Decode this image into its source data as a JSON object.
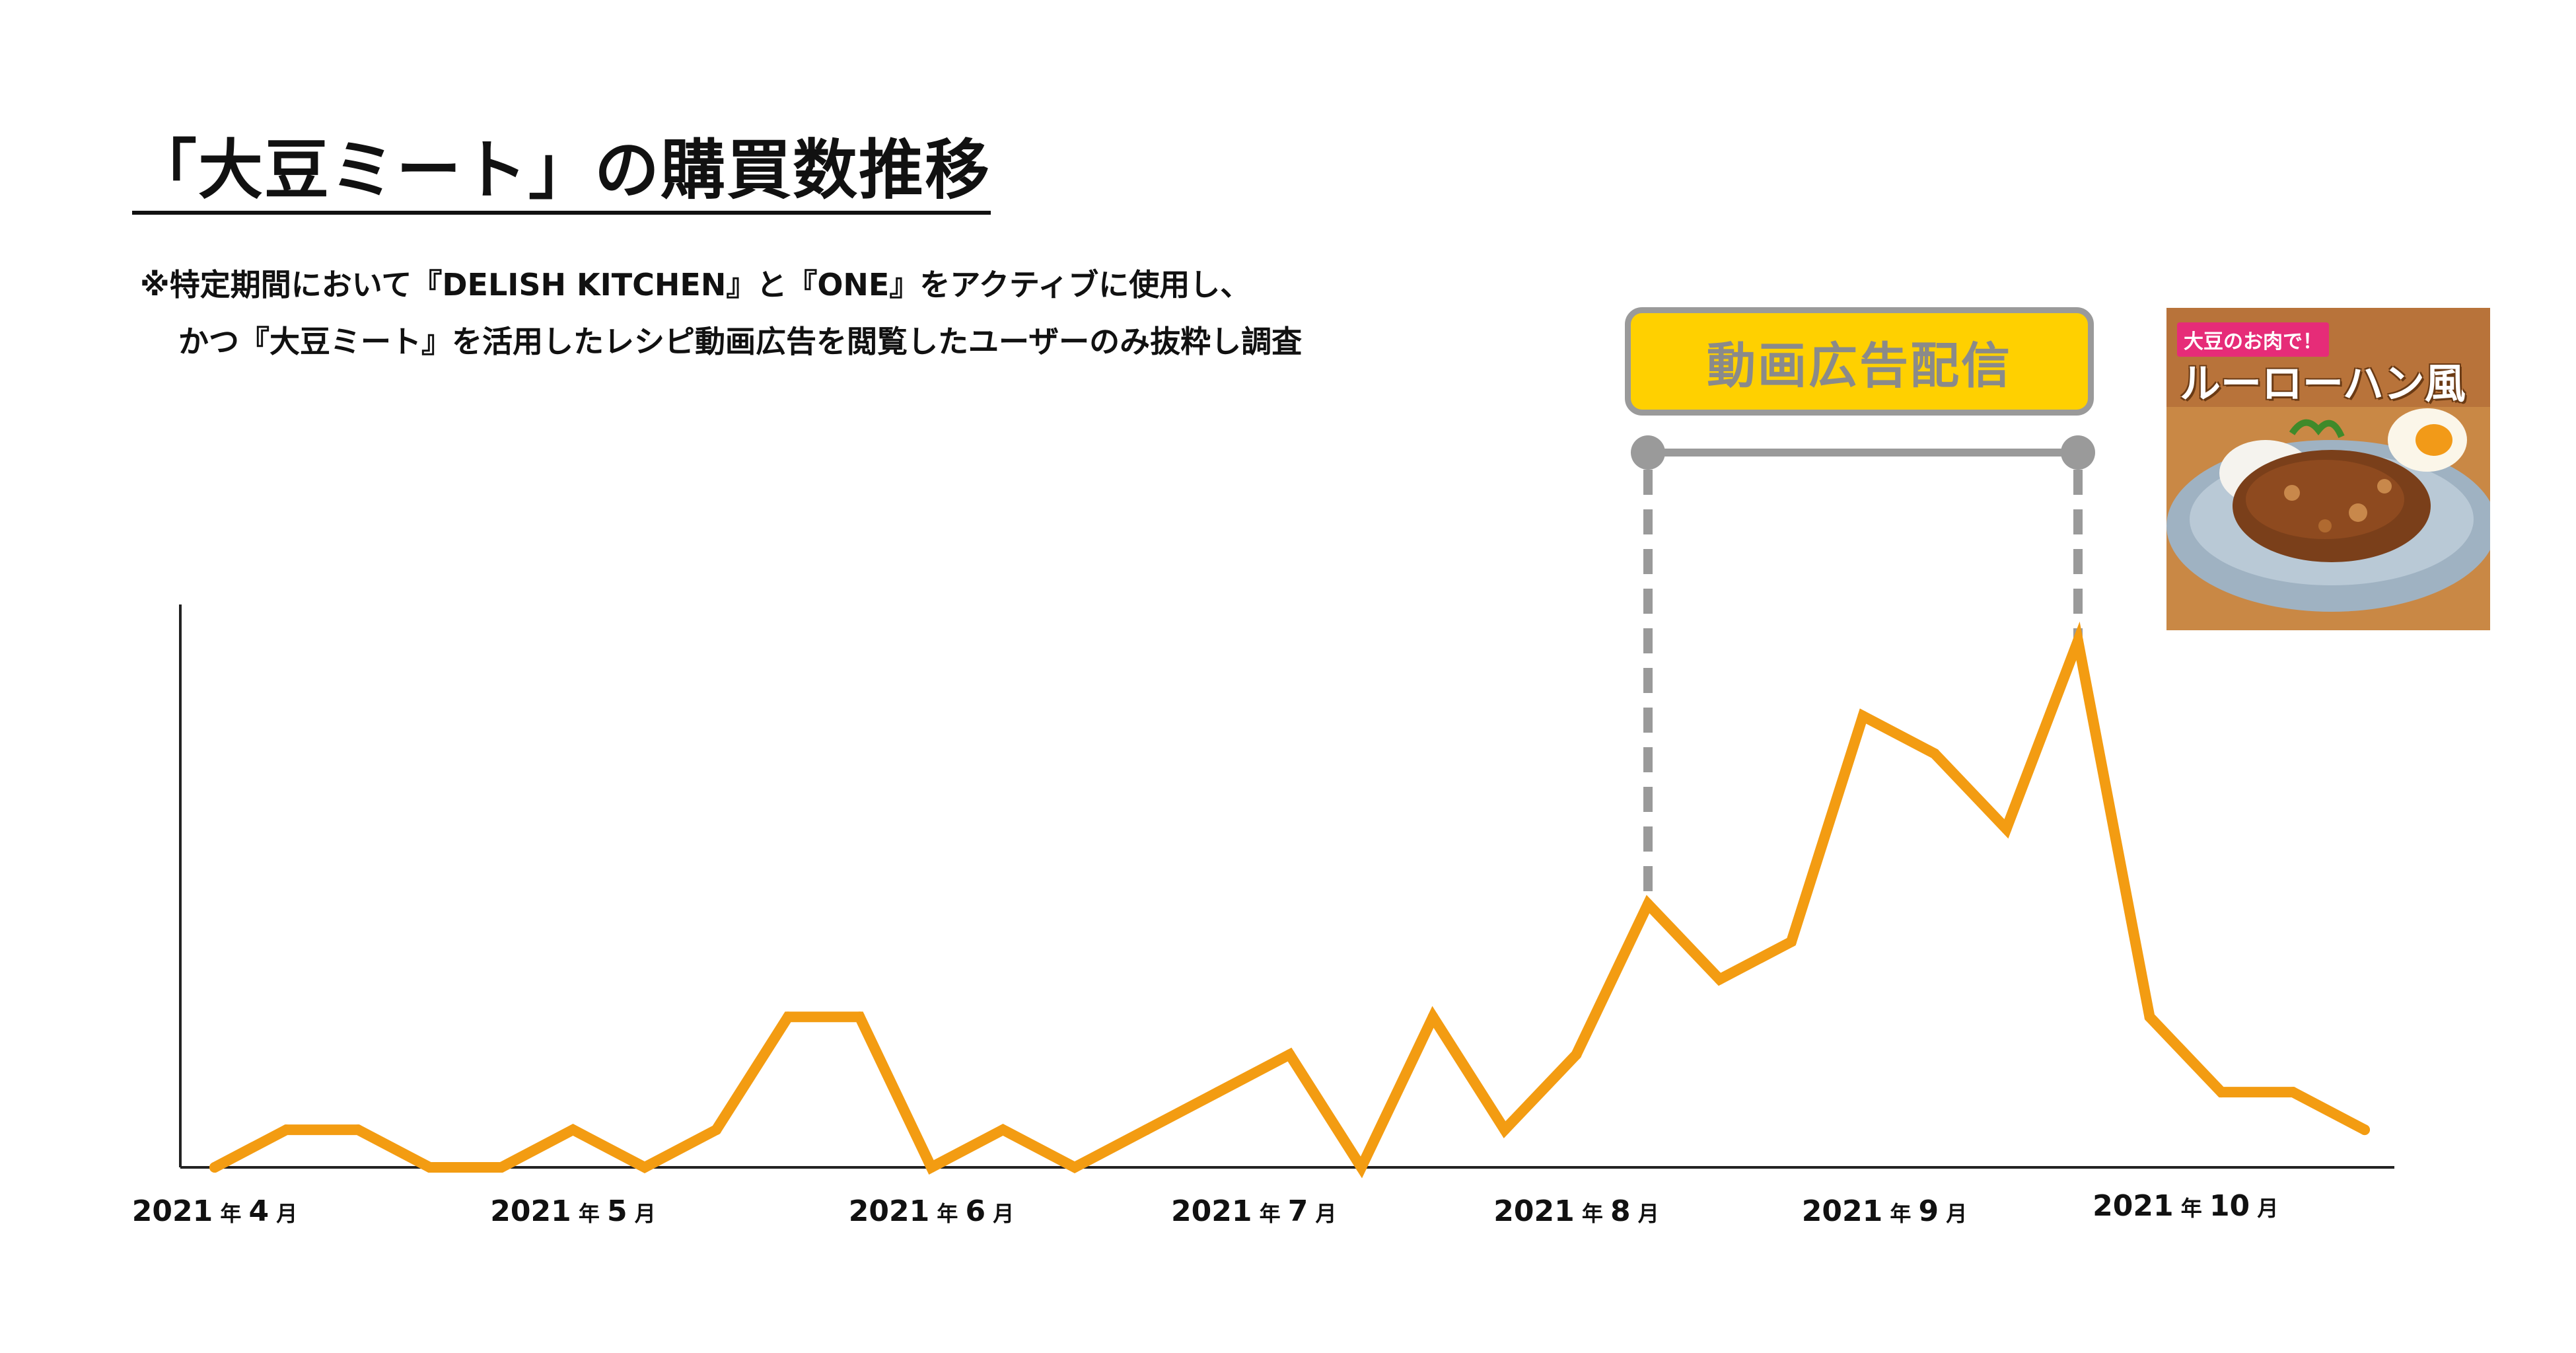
{
  "title": "「大豆ミート」の購買数推移",
  "notes": [
    "※特定期間において『DELISH KITCHEN』と『ONE』をアクティブに使用し、",
    "かつ『大豆ミート』を活用したレシピ動画広告を閲覧したユーザーのみ抜粋し調査"
  ],
  "ad_box_label": "動画広告配信",
  "thumbnail": {
    "tag": "大豆のお肉で！",
    "title": "ルーローハン風",
    "icon": "rice-bowl-dish-photo"
  },
  "colors": {
    "line": "#f39c12",
    "accent": "#ffd000",
    "bracket": "#9a9a9a"
  },
  "chart_data": {
    "type": "line",
    "title": "「大豆ミート」の購買数推移",
    "x_tick_labels": [
      {
        "year": "2021",
        "unit_year": "年",
        "month": "4",
        "unit_month": "月",
        "index": 0
      },
      {
        "year": "2021",
        "unit_year": "年",
        "month": "5",
        "unit_month": "月",
        "index": 5
      },
      {
        "year": "2021",
        "unit_year": "年",
        "month": "6",
        "unit_month": "月",
        "index": 10
      },
      {
        "year": "2021",
        "unit_year": "年",
        "month": "7",
        "unit_month": "月",
        "index": 14.5
      },
      {
        "year": "2021",
        "unit_year": "年",
        "month": "8",
        "unit_month": "月",
        "index": 19
      },
      {
        "year": "2021",
        "unit_year": "年",
        "month": "9",
        "unit_month": "月",
        "index": 23.3
      },
      {
        "year": "2021",
        "unit_year": "年",
        "month": "10",
        "unit_month": "月",
        "index": 27.5
      }
    ],
    "y_axis_ticks_shown": false,
    "ylim": [
      0,
      14
    ],
    "values": [
      0,
      1,
      1,
      0,
      0,
      1,
      0,
      1,
      4,
      4,
      0,
      1,
      0,
      1,
      2,
      3,
      0,
      4,
      1,
      3,
      7,
      5,
      6,
      12,
      11,
      9,
      14,
      4,
      2,
      2,
      1
    ],
    "ad_period": {
      "start_index": 20,
      "end_index": 26,
      "label": "動画広告配信"
    }
  }
}
